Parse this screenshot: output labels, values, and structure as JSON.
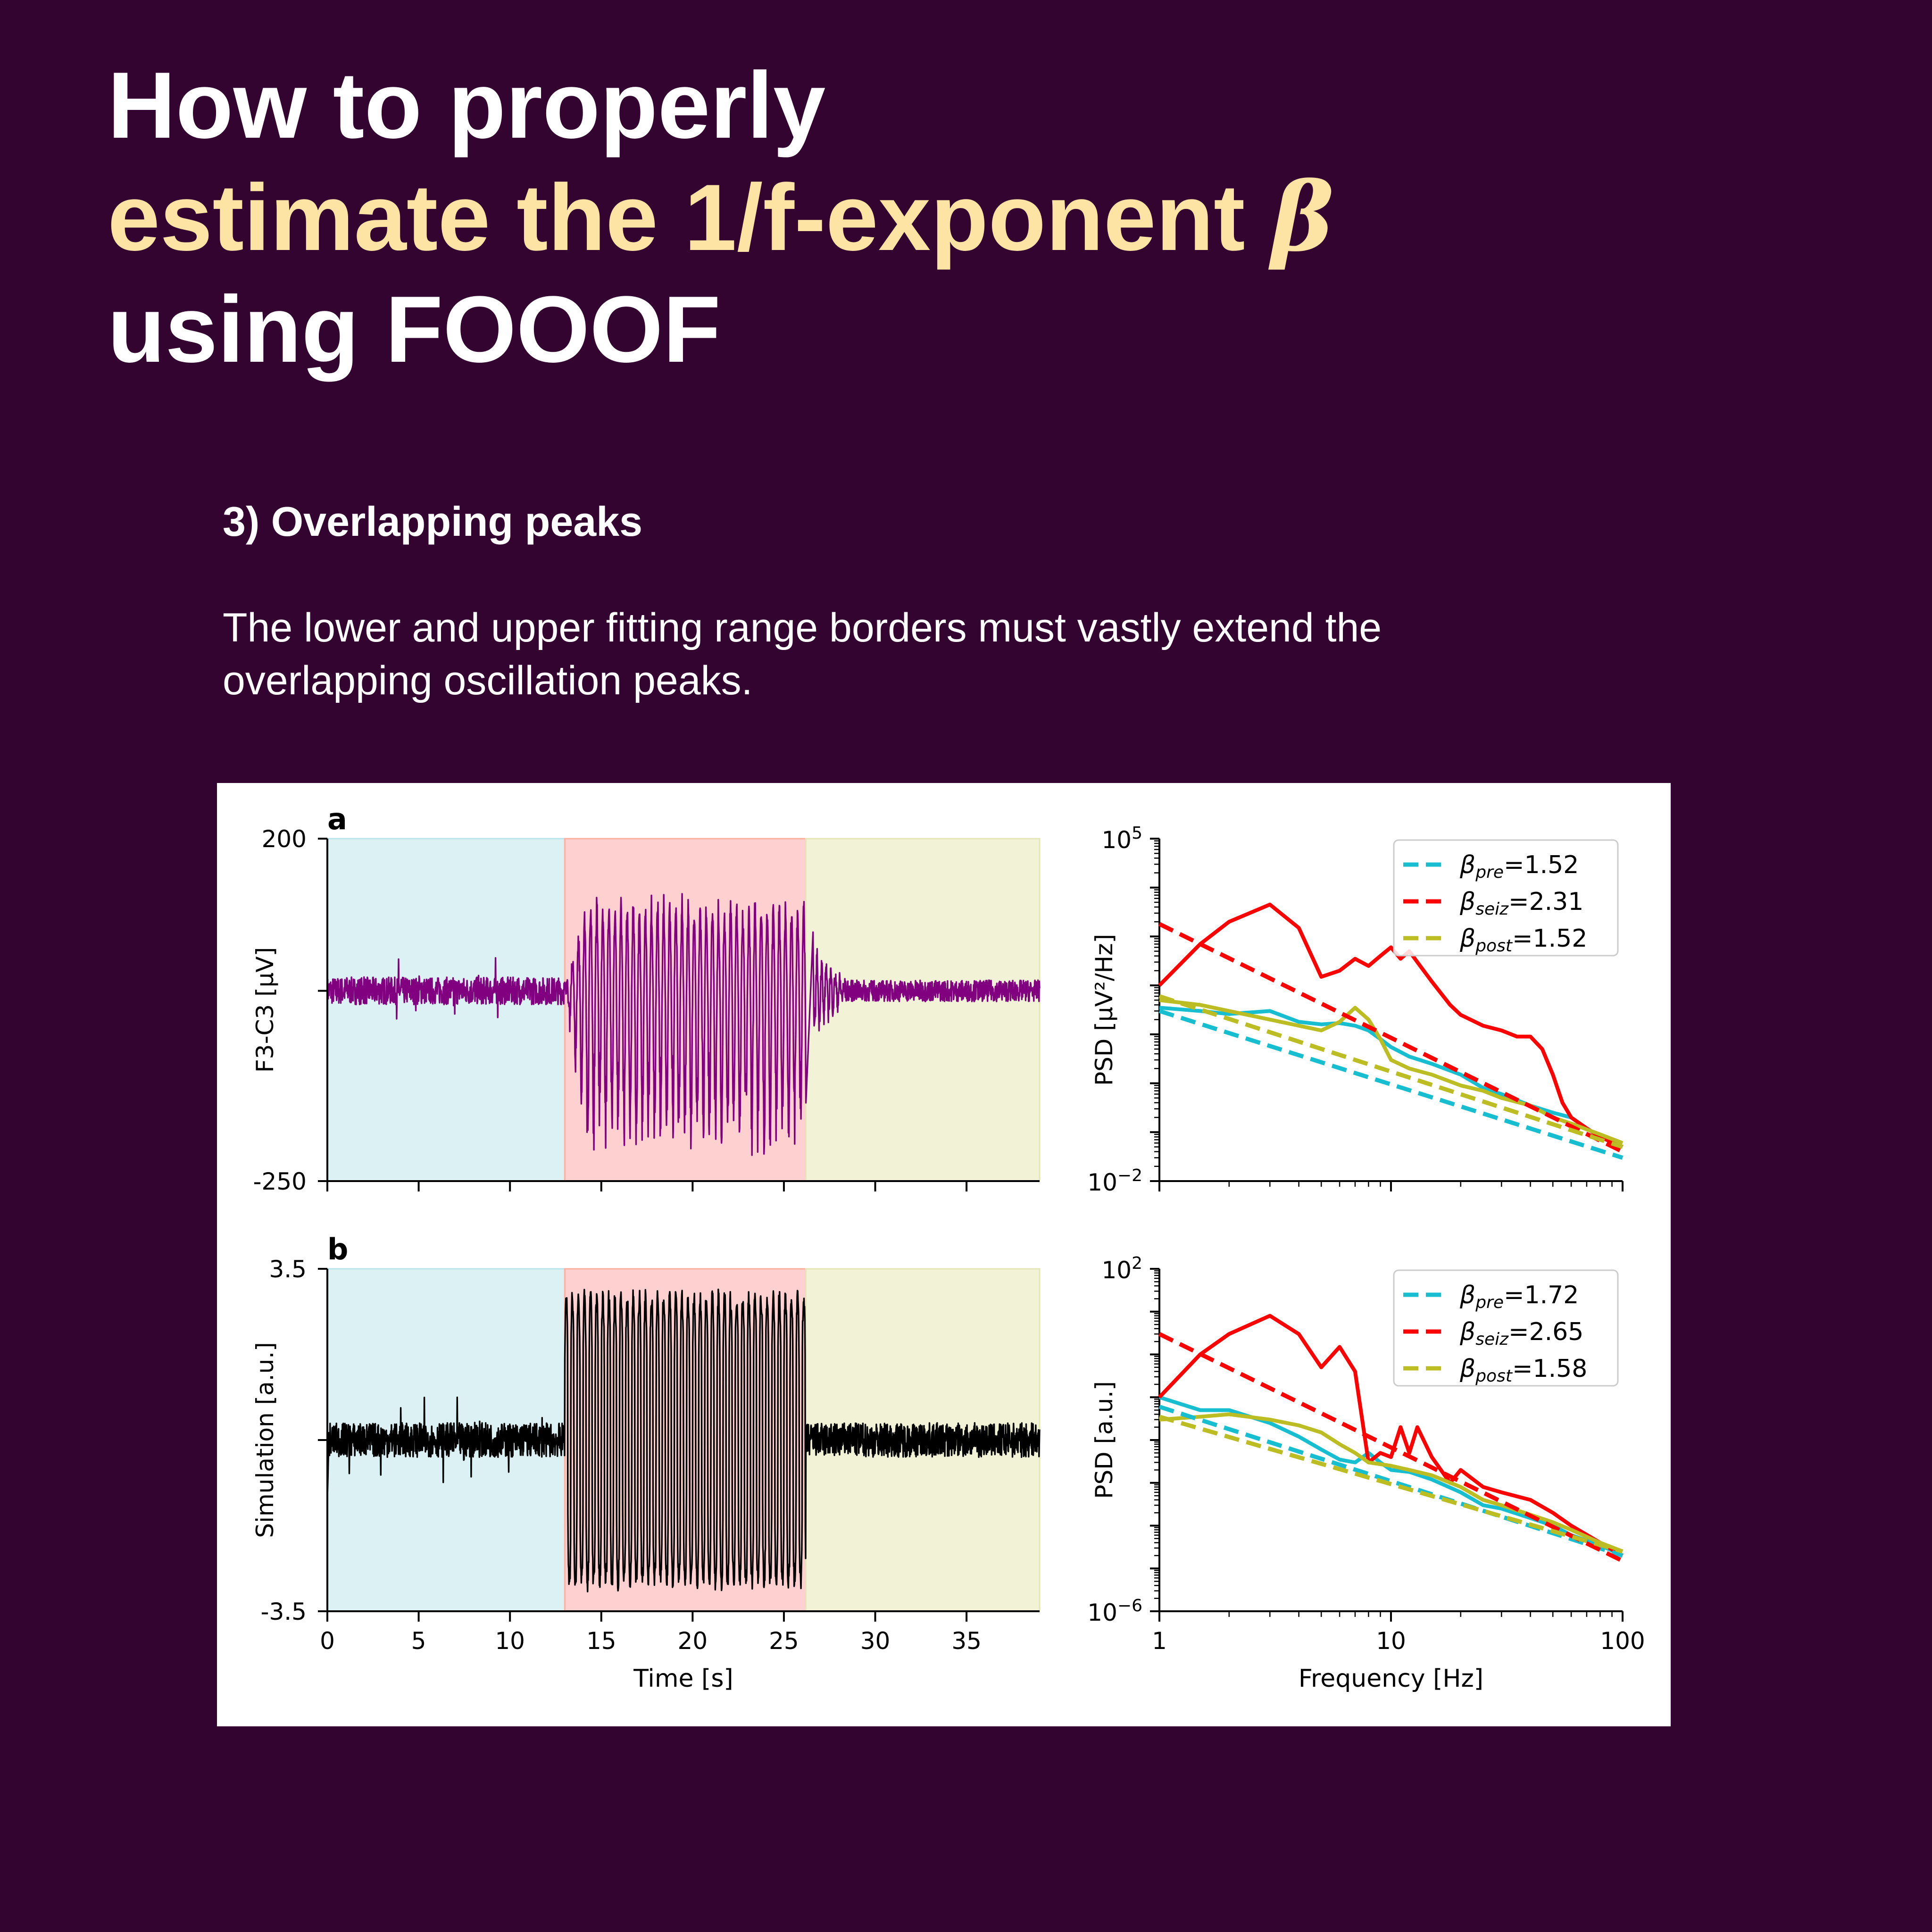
{
  "title": {
    "line1": "How to properly",
    "line2": "estimate the 1/f-exponent ",
    "beta": "β",
    "line3": "using FOOOF"
  },
  "section": {
    "heading": "3) Overlapping peaks",
    "text": "The lower and upper fitting range borders must vastly extend the overlapping oscillation peaks."
  },
  "colors": {
    "background": "#32042f",
    "highlight": "#fde3a4",
    "pre": "#17becf",
    "seiz": "#ff0000",
    "post": "#bcbd22",
    "eeg": "#800080",
    "sim": "#000000"
  },
  "chart_data": [
    {
      "type": "line",
      "panel": "a",
      "ylabel": "F3-C3 [μV]",
      "xlim": [
        0,
        39
      ],
      "ylim": [
        -250,
        200
      ],
      "yticks": [
        "200",
        "-250"
      ],
      "xticks": [
        0,
        5,
        10,
        15,
        20,
        25,
        30,
        35
      ],
      "regions": [
        {
          "name": "pre",
          "from": 0,
          "to": 13
        },
        {
          "name": "seiz",
          "from": 13,
          "to": 26.2
        },
        {
          "name": "post",
          "from": 26.2,
          "to": 39
        }
      ],
      "signal": {
        "baseline": 0,
        "pre_noise": 18,
        "seiz_amp_pos": 120,
        "seiz_amp_neg": 220,
        "seiz_freq_hz": 3,
        "post_noise": 14
      }
    },
    {
      "type": "line",
      "panel": "a-psd",
      "ylabel": "PSD [μV²/Hz]",
      "x_scale": "log",
      "y_scale": "log",
      "xlim": [
        1,
        100
      ],
      "ylim": [
        0.01,
        100000
      ],
      "yticks": [
        {
          "base": "10",
          "exp": "5"
        },
        {
          "base": "10",
          "exp": "−2"
        }
      ],
      "series": [
        {
          "name": "pre",
          "x": [
            1,
            1.5,
            2,
            3,
            4,
            5,
            6,
            7,
            8,
            9,
            10,
            12,
            15,
            20,
            25,
            30,
            40,
            50,
            60,
            70,
            80,
            100
          ],
          "y": [
            35,
            30,
            26,
            30,
            18,
            16,
            17,
            15,
            12,
            8,
            5.5,
            3.5,
            2.5,
            1.5,
            0.8,
            0.6,
            0.35,
            0.25,
            0.2,
            0.12,
            0.08,
            0.05
          ]
        },
        {
          "name": "seiz",
          "x": [
            1,
            1.5,
            2,
            3,
            4,
            5,
            6,
            7,
            8,
            9,
            10,
            11,
            12,
            13,
            15,
            18,
            20,
            25,
            30,
            35,
            40,
            45,
            50,
            55,
            60,
            70,
            80,
            100
          ],
          "y": [
            100,
            700,
            2000,
            4500,
            1500,
            150,
            200,
            350,
            250,
            400,
            600,
            350,
            500,
            300,
            120,
            40,
            25,
            15,
            12,
            9,
            9,
            5,
            1.5,
            0.4,
            0.2,
            0.12,
            0.08,
            0.05
          ]
        },
        {
          "name": "post",
          "x": [
            1,
            1.5,
            2,
            3,
            4,
            5,
            6,
            7,
            8,
            9,
            10,
            12,
            15,
            20,
            25,
            30,
            40,
            50,
            60,
            80,
            100
          ],
          "y": [
            50,
            40,
            30,
            20,
            15,
            12,
            18,
            35,
            20,
            8,
            3,
            2,
            1.5,
            0.9,
            0.7,
            0.5,
            0.35,
            0.2,
            0.15,
            0.09,
            0.06
          ]
        }
      ],
      "fits": [
        {
          "name": "pre",
          "label_sub": "pre",
          "beta": "=1.52",
          "x": [
            1,
            100
          ],
          "y": [
            30,
            0.03
          ]
        },
        {
          "name": "seiz",
          "label_sub": "seiz",
          "beta": "=2.31",
          "x": [
            1,
            100
          ],
          "y": [
            1800,
            0.04
          ]
        },
        {
          "name": "post",
          "label_sub": "post",
          "beta": "=1.52",
          "x": [
            1,
            100
          ],
          "y": [
            60,
            0.05
          ]
        }
      ]
    },
    {
      "type": "line",
      "panel": "b",
      "ylabel": "Simulation [a.u.]",
      "xlabel": "Time [s]",
      "xlim": [
        0,
        39
      ],
      "ylim": [
        -3.5,
        3.5
      ],
      "yticks": [
        "3.5",
        "-3.5"
      ],
      "xticks": [
        0,
        5,
        10,
        15,
        20,
        25,
        30,
        35
      ],
      "regions": [
        {
          "name": "pre",
          "from": 0,
          "to": 13
        },
        {
          "name": "seiz",
          "from": 13,
          "to": 26.2
        },
        {
          "name": "post",
          "from": 26.2,
          "to": 39
        }
      ],
      "signal": {
        "baseline": 0,
        "pre_noise": 0.35,
        "seiz_amp": 3.1,
        "seiz_freq_hz": 3,
        "post_noise": 0.35
      }
    },
    {
      "type": "line",
      "panel": "b-psd",
      "ylabel": "PSD [a.u.]",
      "xlabel": "Frequency [Hz]",
      "x_scale": "log",
      "y_scale": "log",
      "xlim": [
        1,
        100
      ],
      "ylim": [
        1e-06,
        100
      ],
      "xticks": [
        "1",
        "10",
        "100"
      ],
      "yticks": [
        {
          "base": "10",
          "exp": "2"
        },
        {
          "base": "10",
          "exp": "−6"
        }
      ],
      "series": [
        {
          "name": "pre",
          "x": [
            1,
            1.5,
            2,
            3,
            4,
            5,
            6,
            7,
            8,
            9,
            10,
            12,
            15,
            20,
            25,
            30,
            40,
            50,
            60,
            80,
            100
          ],
          "y": [
            0.1,
            0.05,
            0.05,
            0.025,
            0.012,
            0.006,
            0.0035,
            0.003,
            0.005,
            0.003,
            0.002,
            0.0018,
            0.0012,
            0.0006,
            0.0003,
            0.00025,
            0.00015,
            0.0001,
            6e-05,
            3.5e-05,
            2e-05
          ]
        },
        {
          "name": "seiz",
          "x": [
            1,
            1.5,
            2,
            3,
            4,
            5,
            6,
            7,
            8,
            9,
            10,
            11,
            12,
            13,
            15,
            18,
            20,
            25,
            30,
            40,
            50,
            60,
            80,
            100
          ],
          "y": [
            0.1,
            1,
            3,
            8,
            3,
            0.5,
            1.5,
            0.4,
            0.003,
            0.005,
            0.004,
            0.02,
            0.005,
            0.02,
            0.004,
            0.001,
            0.002,
            0.0008,
            0.0006,
            0.0004,
            0.0002,
            0.0001,
            4e-05,
            2e-05
          ]
        },
        {
          "name": "post",
          "x": [
            1,
            1.5,
            2,
            3,
            4,
            5,
            6,
            7,
            8,
            10,
            12,
            15,
            20,
            25,
            30,
            40,
            50,
            60,
            80,
            100
          ],
          "y": [
            0.03,
            0.035,
            0.04,
            0.03,
            0.022,
            0.015,
            0.008,
            0.005,
            0.003,
            0.0025,
            0.002,
            0.0015,
            0.0008,
            0.0004,
            0.0003,
            0.00018,
            0.00012,
            8e-05,
            4e-05,
            2.5e-05
          ]
        }
      ],
      "fits": [
        {
          "name": "pre",
          "label_sub": "pre",
          "beta": "=1.72",
          "x": [
            1,
            100
          ],
          "y": [
            0.06,
            2e-05
          ]
        },
        {
          "name": "seiz",
          "label_sub": "seiz",
          "beta": "=2.65",
          "x": [
            1,
            100
          ],
          "y": [
            3,
            1.5e-05
          ]
        },
        {
          "name": "post",
          "label_sub": "post",
          "beta": "=1.58",
          "x": [
            1,
            100
          ],
          "y": [
            0.035,
            2.5e-05
          ]
        }
      ]
    }
  ],
  "panel_labels": {
    "a": "a",
    "b": "b"
  },
  "tick_labels": {
    "time": [
      "0",
      "5",
      "10",
      "15",
      "20",
      "25",
      "30",
      "35"
    ],
    "freq": [
      "1",
      "10",
      "100"
    ]
  }
}
